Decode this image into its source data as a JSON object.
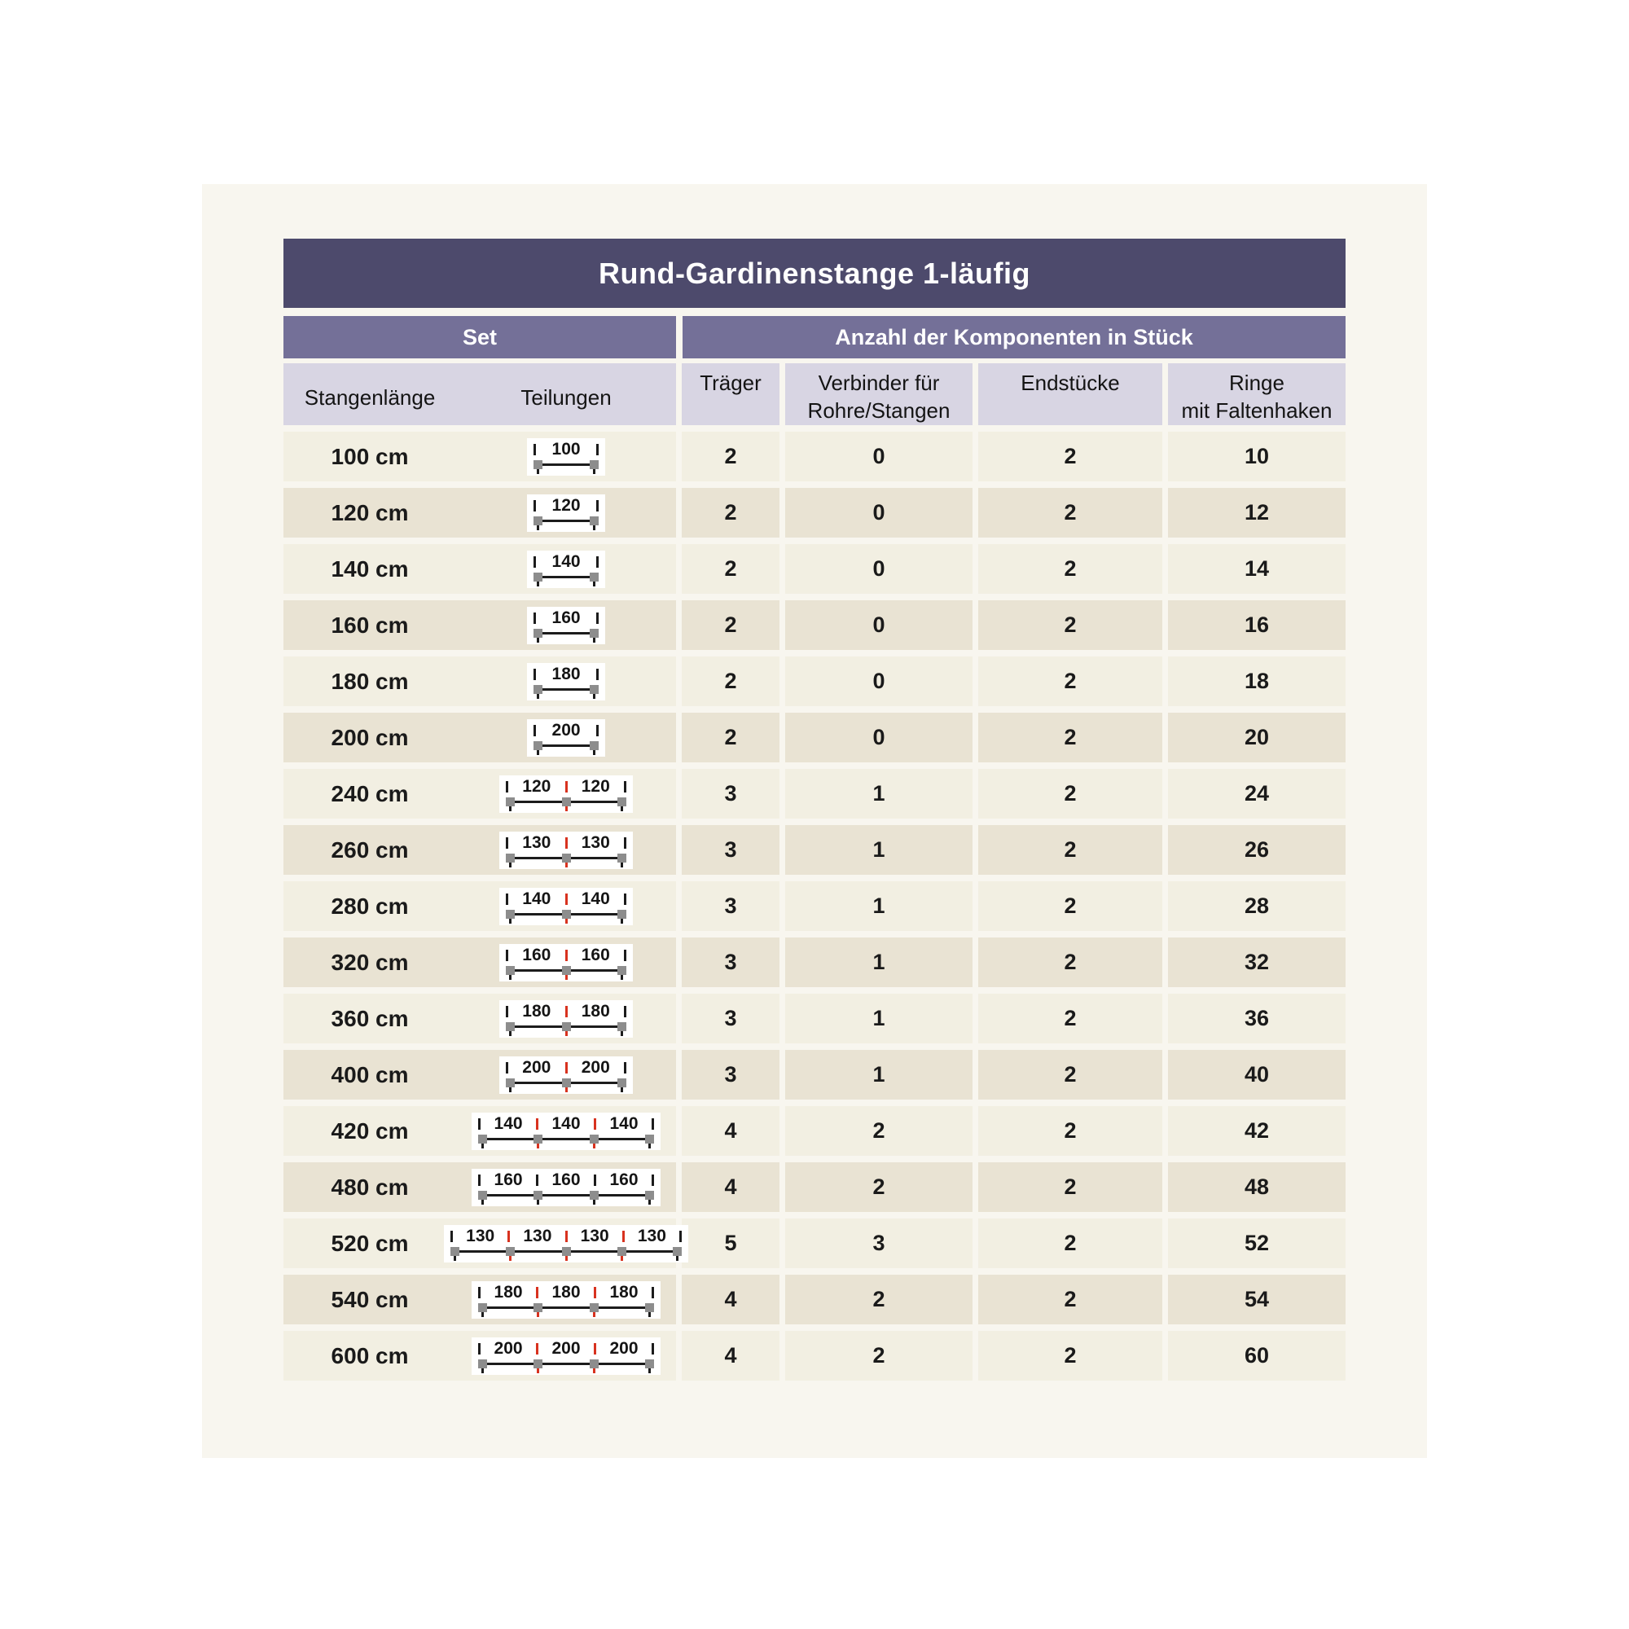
{
  "title": "Rund-Gardinenstange 1-läufig",
  "sections": {
    "set": "Set",
    "components": "Anzahl der Komponenten in Stück"
  },
  "columns": {
    "length": "Stangenlänge",
    "divisions": "Teilungen",
    "traeger": "Träger",
    "verbinder_line1": "Verbinder für",
    "verbinder_line2": "Rohre/Stangen",
    "endstuecke": "Endstücke",
    "ringe_line1": "Ringe",
    "ringe_line2": "mit Faltenhaken"
  },
  "colors": {
    "title_bar": "#4d4a6c",
    "section_bar": "#747098",
    "column_header": "#d8d5e3",
    "row_light": "#f2efe2",
    "row_dark": "#e9e3d3",
    "accent_red": "#d8321f",
    "bracket_gray": "#8d8d8d"
  },
  "rows": [
    {
      "length": "100 cm",
      "segments": [
        "100"
      ],
      "joint": "red",
      "traeger": "2",
      "verbinder": "0",
      "endstuecke": "2",
      "ringe": "10"
    },
    {
      "length": "120 cm",
      "segments": [
        "120"
      ],
      "joint": "red",
      "traeger": "2",
      "verbinder": "0",
      "endstuecke": "2",
      "ringe": "12"
    },
    {
      "length": "140 cm",
      "segments": [
        "140"
      ],
      "joint": "red",
      "traeger": "2",
      "verbinder": "0",
      "endstuecke": "2",
      "ringe": "14"
    },
    {
      "length": "160 cm",
      "segments": [
        "160"
      ],
      "joint": "red",
      "traeger": "2",
      "verbinder": "0",
      "endstuecke": "2",
      "ringe": "16"
    },
    {
      "length": "180 cm",
      "segments": [
        "180"
      ],
      "joint": "red",
      "traeger": "2",
      "verbinder": "0",
      "endstuecke": "2",
      "ringe": "18"
    },
    {
      "length": "200 cm",
      "segments": [
        "200"
      ],
      "joint": "red",
      "traeger": "2",
      "verbinder": "0",
      "endstuecke": "2",
      "ringe": "20"
    },
    {
      "length": "240 cm",
      "segments": [
        "120",
        "120"
      ],
      "joint": "red",
      "traeger": "3",
      "verbinder": "1",
      "endstuecke": "2",
      "ringe": "24"
    },
    {
      "length": "260 cm",
      "segments": [
        "130",
        "130"
      ],
      "joint": "red",
      "traeger": "3",
      "verbinder": "1",
      "endstuecke": "2",
      "ringe": "26"
    },
    {
      "length": "280 cm",
      "segments": [
        "140",
        "140"
      ],
      "joint": "red",
      "traeger": "3",
      "verbinder": "1",
      "endstuecke": "2",
      "ringe": "28"
    },
    {
      "length": "320 cm",
      "segments": [
        "160",
        "160"
      ],
      "joint": "red",
      "traeger": "3",
      "verbinder": "1",
      "endstuecke": "2",
      "ringe": "32"
    },
    {
      "length": "360 cm",
      "segments": [
        "180",
        "180"
      ],
      "joint": "red",
      "traeger": "3",
      "verbinder": "1",
      "endstuecke": "2",
      "ringe": "36"
    },
    {
      "length": "400 cm",
      "segments": [
        "200",
        "200"
      ],
      "joint": "red",
      "traeger": "3",
      "verbinder": "1",
      "endstuecke": "2",
      "ringe": "40"
    },
    {
      "length": "420 cm",
      "segments": [
        "140",
        "140",
        "140"
      ],
      "joint": "red",
      "traeger": "4",
      "verbinder": "2",
      "endstuecke": "2",
      "ringe": "42"
    },
    {
      "length": "480 cm",
      "segments": [
        "160",
        "160",
        "160"
      ],
      "joint": "black",
      "traeger": "4",
      "verbinder": "2",
      "endstuecke": "2",
      "ringe": "48"
    },
    {
      "length": "520 cm",
      "segments": [
        "130",
        "130",
        "130",
        "130"
      ],
      "joint": "red",
      "traeger": "5",
      "verbinder": "3",
      "endstuecke": "2",
      "ringe": "52"
    },
    {
      "length": "540 cm",
      "segments": [
        "180",
        "180",
        "180"
      ],
      "joint": "red",
      "traeger": "4",
      "verbinder": "2",
      "endstuecke": "2",
      "ringe": "54"
    },
    {
      "length": "600 cm",
      "segments": [
        "200",
        "200",
        "200"
      ],
      "joint": "red",
      "traeger": "4",
      "verbinder": "2",
      "endstuecke": "2",
      "ringe": "60"
    }
  ]
}
